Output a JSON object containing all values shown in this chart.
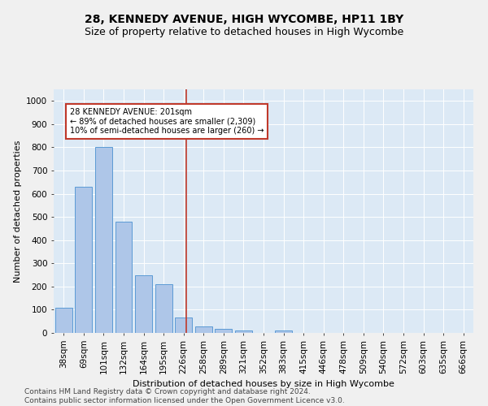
{
  "title": "28, KENNEDY AVENUE, HIGH WYCOMBE, HP11 1BY",
  "subtitle": "Size of property relative to detached houses in High Wycombe",
  "xlabel": "Distribution of detached houses by size in High Wycombe",
  "ylabel": "Number of detached properties",
  "footer_line1": "Contains HM Land Registry data © Crown copyright and database right 2024.",
  "footer_line2": "Contains public sector information licensed under the Open Government Licence v3.0.",
  "categories": [
    "38sqm",
    "69sqm",
    "101sqm",
    "132sqm",
    "164sqm",
    "195sqm",
    "226sqm",
    "258sqm",
    "289sqm",
    "321sqm",
    "352sqm",
    "383sqm",
    "415sqm",
    "446sqm",
    "478sqm",
    "509sqm",
    "540sqm",
    "572sqm",
    "603sqm",
    "635sqm",
    "666sqm"
  ],
  "values": [
    110,
    630,
    800,
    480,
    250,
    210,
    65,
    28,
    18,
    12,
    0,
    12,
    0,
    0,
    0,
    0,
    0,
    0,
    0,
    0,
    0
  ],
  "bar_color": "#aec6e8",
  "bar_edge_color": "#5b9bd5",
  "vline_pos": 6.15,
  "vline_color": "#c0392b",
  "annotation_text": "28 KENNEDY AVENUE: 201sqm\n← 89% of detached houses are smaller (2,309)\n10% of semi-detached houses are larger (260) →",
  "annotation_box_color": "#ffffff",
  "annotation_box_edge": "#c0392b",
  "ylim": [
    0,
    1050
  ],
  "yticks": [
    0,
    100,
    200,
    300,
    400,
    500,
    600,
    700,
    800,
    900,
    1000
  ],
  "background_color": "#dce9f5",
  "grid_color": "#ffffff",
  "title_fontsize": 10,
  "subtitle_fontsize": 9,
  "axis_label_fontsize": 8,
  "tick_fontsize": 7.5,
  "footer_fontsize": 6.5
}
